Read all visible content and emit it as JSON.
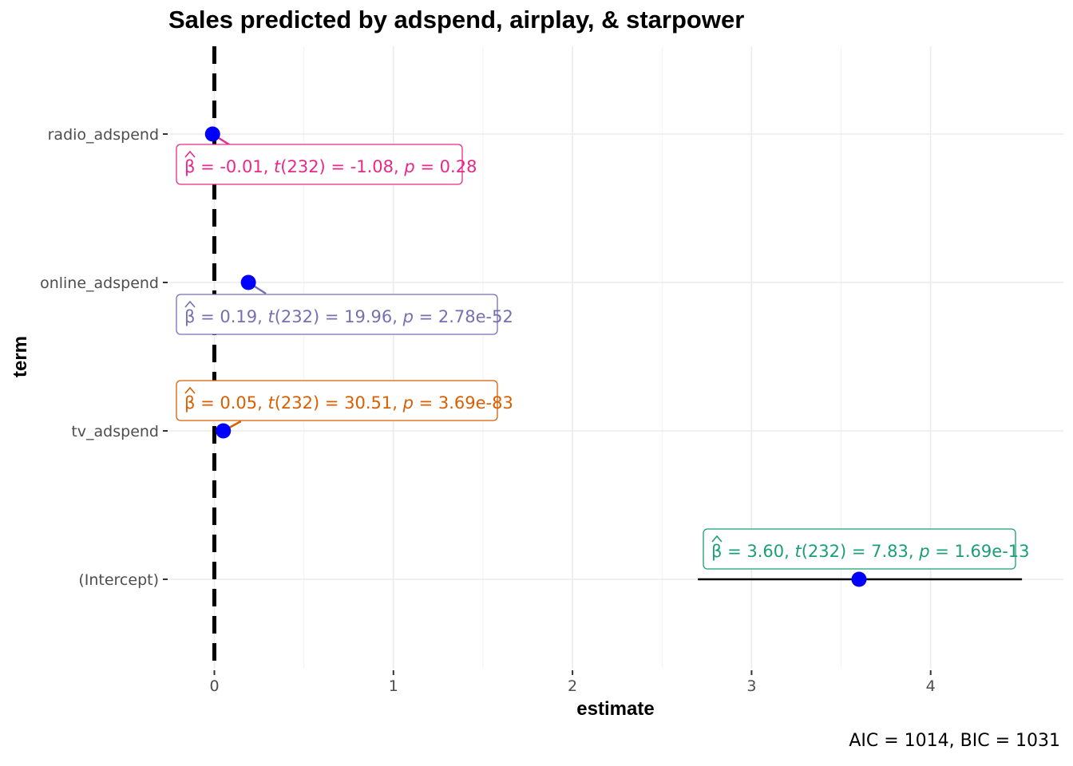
{
  "chart_data": {
    "type": "scatter",
    "title": "Sales predicted by adspend, airplay, & starpower",
    "xlabel": "estimate",
    "ylabel": "term",
    "caption": "AIC = 1014, BIC = 1031",
    "xlim": [
      -0.25,
      4.75
    ],
    "x_ticks": [
      "0",
      "1",
      "2",
      "3",
      "4"
    ],
    "x_tick_values": [
      0,
      1,
      2,
      3,
      4
    ],
    "grid": true,
    "reference_line_x": 0,
    "categories": [
      "radio_adspend",
      "online_adspend",
      "tv_adspend",
      "(Intercept)"
    ],
    "points": [
      {
        "term": "radio_adspend",
        "estimate": -0.01,
        "ci_low": -0.03,
        "ci_high": 0.01,
        "color": "#e7298a",
        "label": {
          "beta": "-0.01",
          "df": "232",
          "t": "-1.08",
          "p": "0.28"
        }
      },
      {
        "term": "online_adspend",
        "estimate": 0.19,
        "ci_low": 0.17,
        "ci_high": 0.21,
        "color": "#7570b3",
        "label": {
          "beta": "0.19",
          "df": "232",
          "t": "19.96",
          "p": "2.78e-52"
        }
      },
      {
        "term": "tv_adspend",
        "estimate": 0.05,
        "ci_low": 0.04,
        "ci_high": 0.05,
        "color": "#d95f02",
        "label": {
          "beta": "0.05",
          "df": "232",
          "t": "30.51",
          "p": "3.69e-83"
        }
      },
      {
        "term": "(Intercept)",
        "estimate": 3.6,
        "ci_low": 2.7,
        "ci_high": 4.51,
        "color": "#1b9e77",
        "label": {
          "beta": "3.60",
          "df": "232",
          "t": "7.83",
          "p": "1.69e-13"
        }
      }
    ],
    "point_color": "#0000ff"
  }
}
